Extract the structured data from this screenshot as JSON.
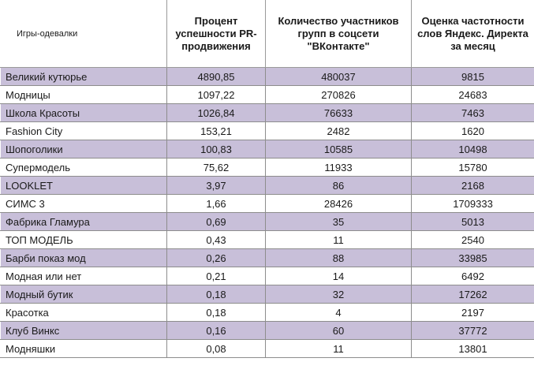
{
  "colors": {
    "band": "#c8bfd9",
    "plain": "#ffffff",
    "text": "#1a1a1a"
  },
  "headers": [
    "Игры-одевалки",
    "Процент успешности PR-продвижения",
    "Количество участников групп в соцсети \"ВКонтакте\"",
    "Оценка частотности слов Яндекс. Директа за месяц"
  ],
  "rows": [
    [
      "Великий кутюрье",
      "4890,85",
      "480037",
      "9815"
    ],
    [
      "Модницы",
      "1097,22",
      "270826",
      "24683"
    ],
    [
      "Школа Красоты",
      "1026,84",
      "76633",
      "7463"
    ],
    [
      "Fashion City",
      "153,21",
      "2482",
      "1620"
    ],
    [
      "Шопоголики",
      "100,83",
      "10585",
      "10498"
    ],
    [
      "Супермодель",
      "75,62",
      "11933",
      "15780"
    ],
    [
      "LOOKLET",
      "3,97",
      "86",
      "2168"
    ],
    [
      "СИМС 3",
      "1,66",
      "28426",
      "1709333"
    ],
    [
      " Фабрика Гламура",
      "0,69",
      "35",
      "5013"
    ],
    [
      "ТОП МОДЕЛЬ",
      "0,43",
      "11",
      "2540"
    ],
    [
      "Барби показ мод",
      "0,26",
      "88",
      "33985"
    ],
    [
      "Модная или нет",
      "0,21",
      "14",
      "6492"
    ],
    [
      "Модный бутик",
      "0,18",
      "32",
      "17262"
    ],
    [
      "Красотка",
      "0,18",
      "4",
      "2197"
    ],
    [
      "Клуб Винкс",
      "0,16",
      "60",
      "37772"
    ],
    [
      "Модняшки",
      "0,08",
      "11",
      "13801"
    ]
  ]
}
